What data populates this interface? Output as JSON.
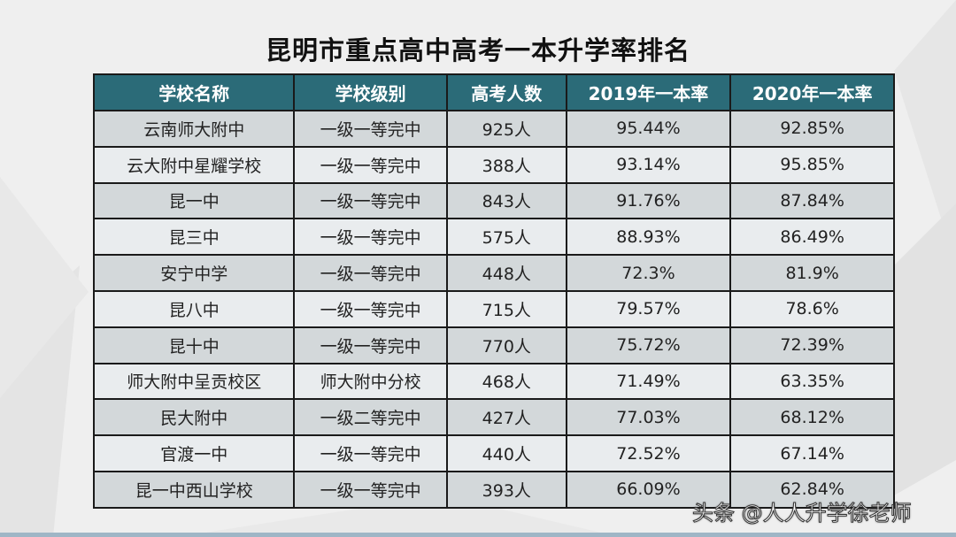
{
  "title": "昆明市重点高中高考一本升学率排名",
  "colors": {
    "header_bg": "#2b6b78",
    "row_dark": "#d3d8da",
    "row_light": "#e9ecee"
  },
  "table": {
    "headers": [
      "学校名称",
      "学校级别",
      "高考人数",
      "2019年一本率",
      "2020年一本率"
    ],
    "rows": [
      [
        "云南师大附中",
        "一级一等完中",
        "925人",
        "95.44%",
        "92.85%"
      ],
      [
        "云大附中星耀学校",
        "一级一等完中",
        "388人",
        "93.14%",
        "95.85%"
      ],
      [
        "昆一中",
        "一级一等完中",
        "843人",
        "91.76%",
        "87.84%"
      ],
      [
        "昆三中",
        "一级一等完中",
        "575人",
        "88.93%",
        "86.49%"
      ],
      [
        "安宁中学",
        "一级一等完中",
        "448人",
        "72.3%",
        "81.9%"
      ],
      [
        "昆八中",
        "一级一等完中",
        "715人",
        "79.57%",
        "78.6%"
      ],
      [
        "昆十中",
        "一级一等完中",
        "770人",
        "75.72%",
        "72.39%"
      ],
      [
        "师大附中呈贡校区",
        "师大附中分校",
        "468人",
        "71.49%",
        "63.35%"
      ],
      [
        "民大附中",
        "一级二等完中",
        "427人",
        "77.03%",
        "68.12%"
      ],
      [
        "官渡一中",
        "一级一等完中",
        "440人",
        "72.52%",
        "67.14%"
      ],
      [
        "昆一中西山学校",
        "一级一等完中",
        "393人",
        "66.09%",
        "62.84%"
      ]
    ]
  },
  "watermark": "头条 @人人升学徐老师"
}
